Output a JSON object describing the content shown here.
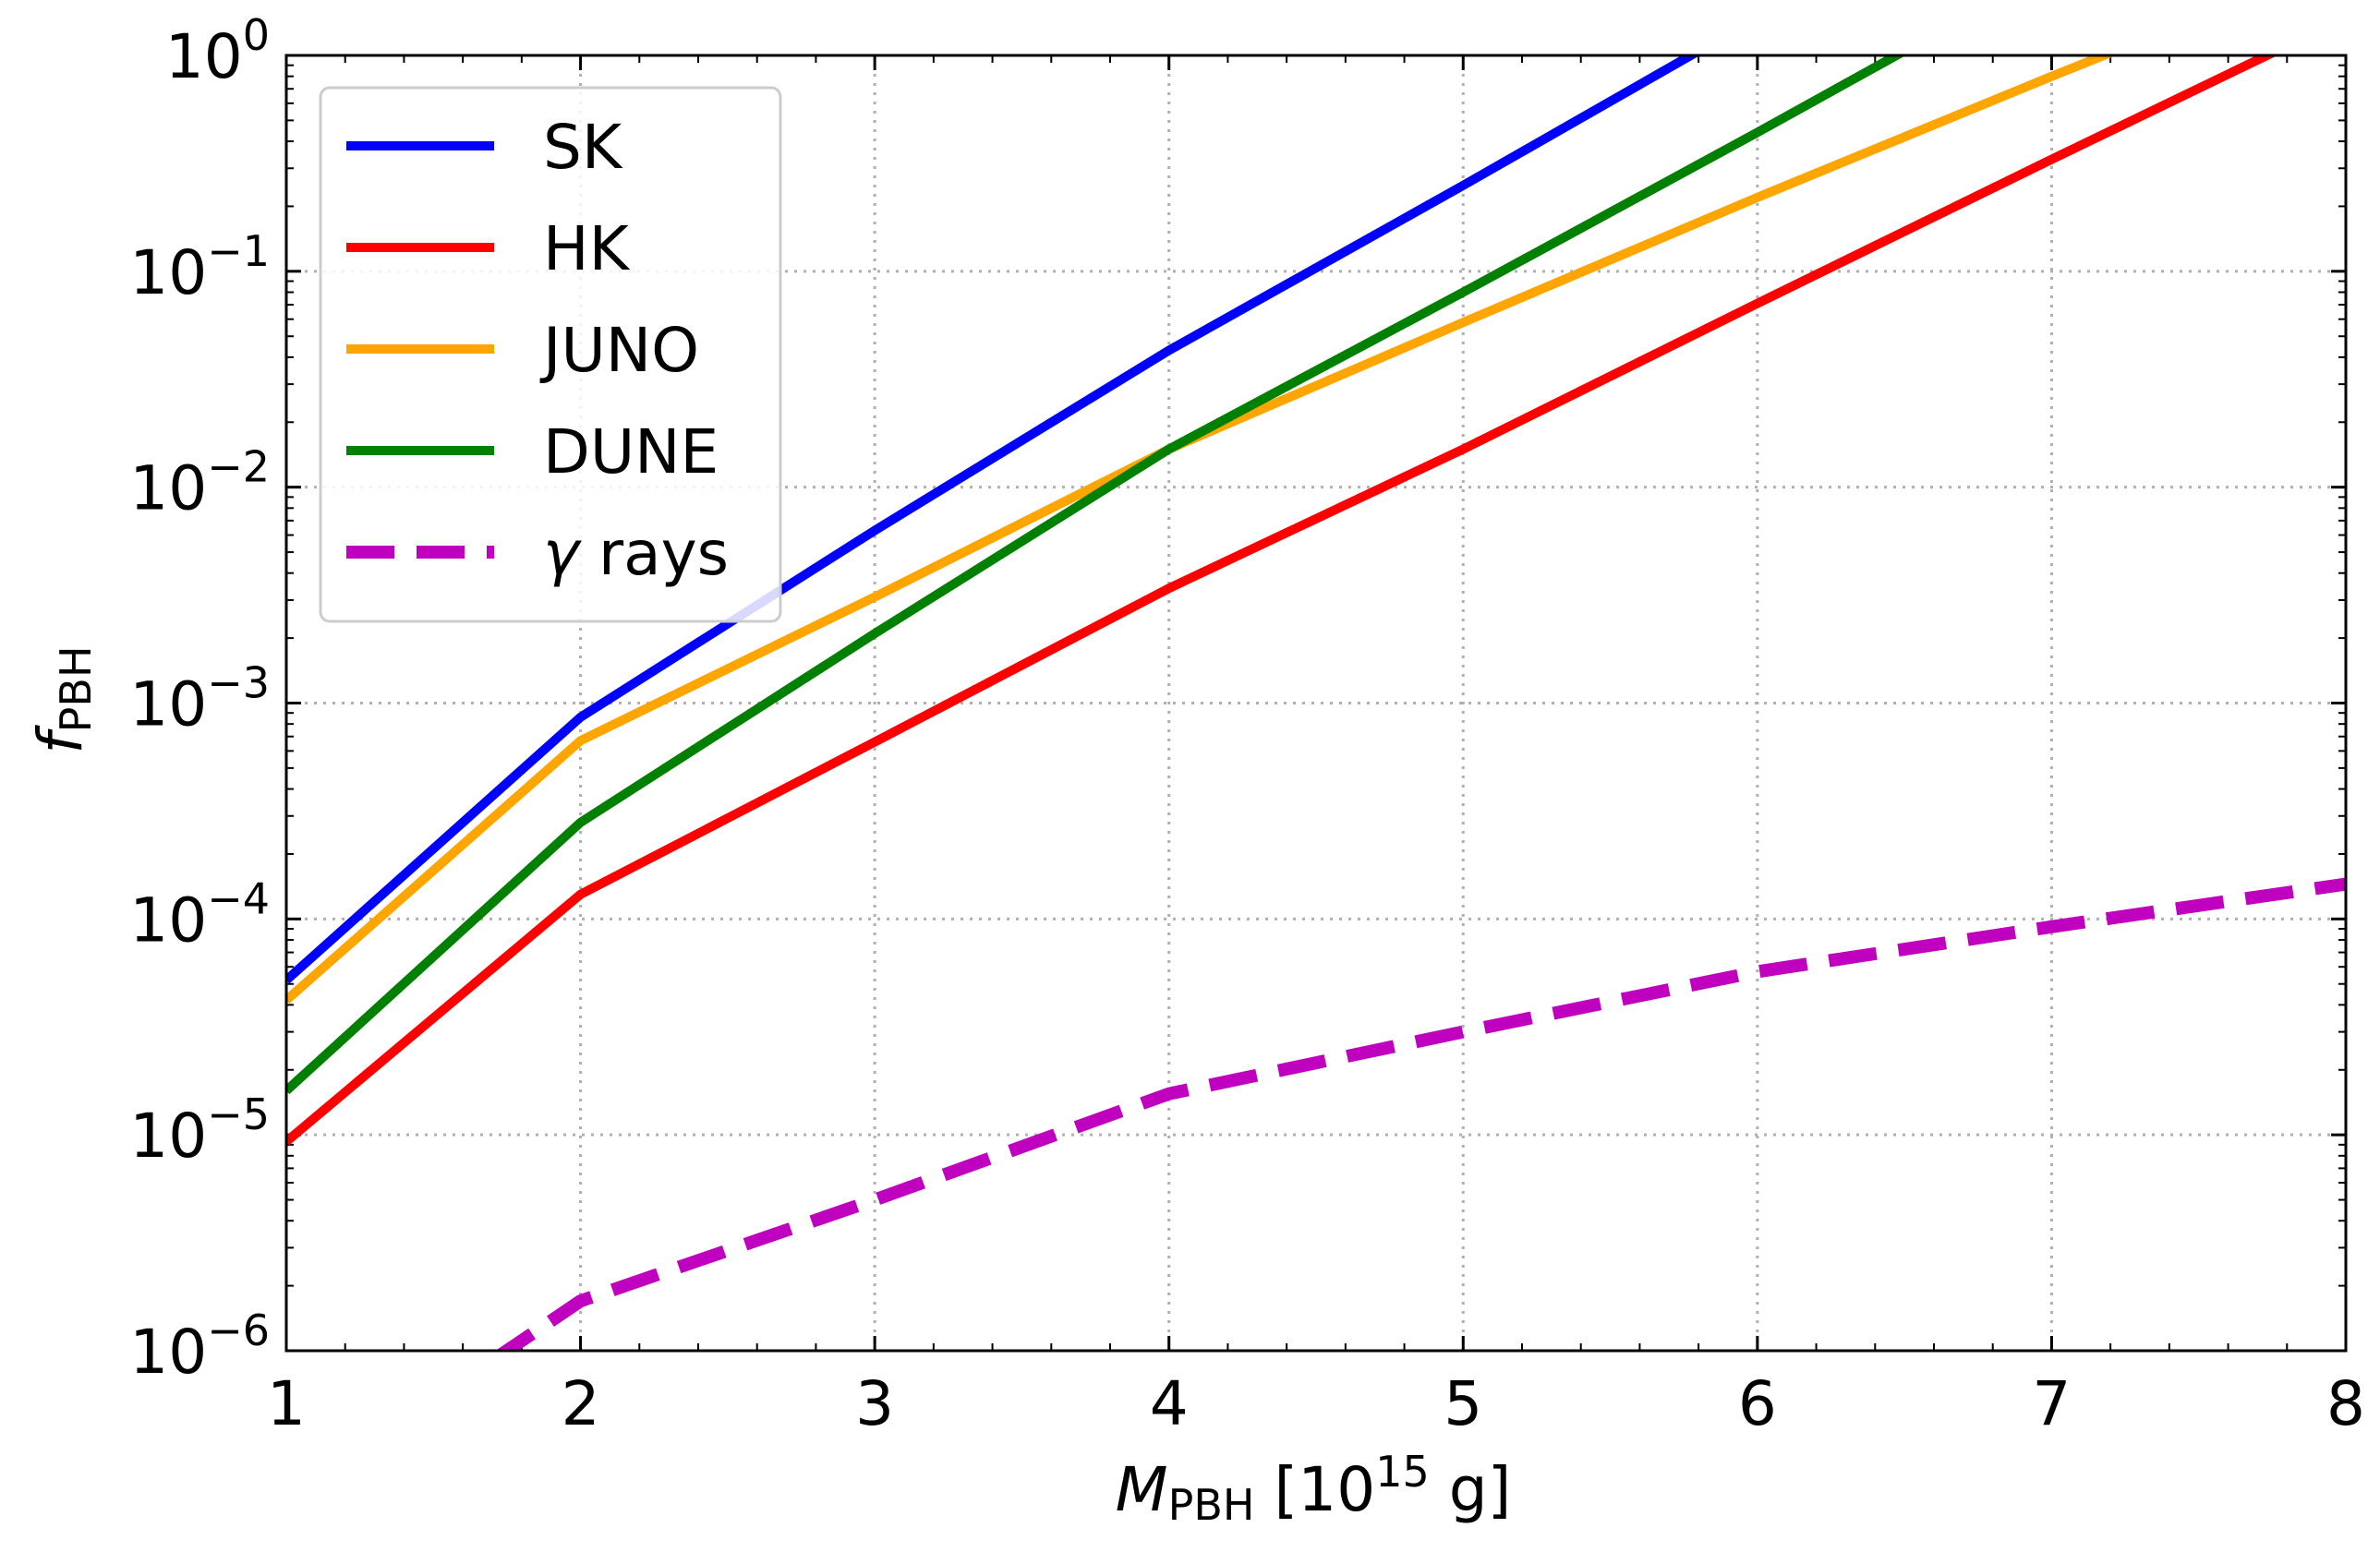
{
  "chart_data": {
    "type": "line",
    "xlabel": {
      "main": "M",
      "sub": "PBH",
      "rest": " [10",
      "sup": "15",
      "unit": " g]"
    },
    "ylabel": {
      "main": "f",
      "sub": "PBH"
    },
    "xlim": [
      1,
      8
    ],
    "ylim": [
      1e-06,
      1
    ],
    "yscale": "log",
    "grid": true,
    "grid_style": "dotted",
    "legend_position": "upper-left",
    "x_ticks": [
      "1",
      "2",
      "3",
      "4",
      "5",
      "6",
      "7",
      "8"
    ],
    "x_tick_values": [
      1,
      2,
      3,
      4,
      5,
      6,
      7,
      8
    ],
    "y_ticks": [
      {
        "value": 1e-06,
        "base": "10",
        "exp": "−6"
      },
      {
        "value": 1e-05,
        "base": "10",
        "exp": "−5"
      },
      {
        "value": 0.0001,
        "base": "10",
        "exp": "−4"
      },
      {
        "value": 0.001,
        "base": "10",
        "exp": "−3"
      },
      {
        "value": 0.01,
        "base": "10",
        "exp": "−2"
      },
      {
        "value": 0.1,
        "base": "10",
        "exp": "−1"
      },
      {
        "value": 1,
        "base": "10",
        "exp": "0"
      }
    ],
    "series": [
      {
        "name": "SK",
        "color": "#0000ff",
        "style": "solid",
        "x": [
          1,
          2,
          3,
          4,
          5,
          6
        ],
        "y": [
          5.2e-05,
          0.00086,
          0.0063,
          0.043,
          0.25,
          1.5
        ]
      },
      {
        "name": "HK",
        "color": "#ff0000",
        "style": "solid",
        "x": [
          1,
          2,
          3,
          4,
          5,
          6,
          7,
          8
        ],
        "y": [
          9.3e-06,
          0.00013,
          0.00066,
          0.0034,
          0.015,
          0.071,
          0.33,
          1.5
        ]
      },
      {
        "name": "JUNO",
        "color": "#ffa500",
        "style": "solid",
        "x": [
          1,
          2,
          3,
          4,
          5,
          6,
          7,
          7.5
        ],
        "y": [
          4.2e-05,
          0.00067,
          0.0031,
          0.015,
          0.058,
          0.22,
          0.8,
          1.5
        ]
      },
      {
        "name": "DUNE",
        "color": "#008000",
        "style": "solid",
        "x": [
          1,
          2,
          3,
          4,
          5,
          6,
          7
        ],
        "y": [
          1.6e-05,
          0.00028,
          0.0021,
          0.015,
          0.08,
          0.44,
          2.5
        ]
      },
      {
        "name": "γ rays",
        "color": "#bf00bf",
        "style": "dashed",
        "x": [
          1.7,
          2,
          3,
          4,
          5,
          6,
          7,
          8
        ],
        "y": [
          9e-07,
          1.7e-06,
          5e-06,
          1.55e-05,
          3e-05,
          5.7e-05,
          9.2e-05,
          0.000145
        ]
      }
    ]
  }
}
